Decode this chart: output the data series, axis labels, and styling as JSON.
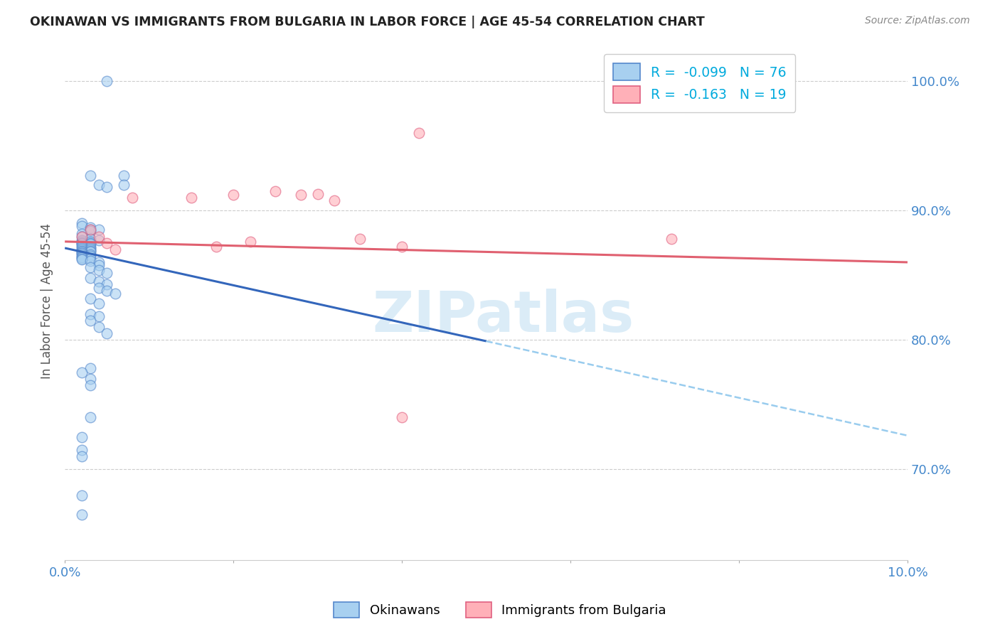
{
  "title": "OKINAWAN VS IMMIGRANTS FROM BULGARIA IN LABOR FORCE | AGE 45-54 CORRELATION CHART",
  "source": "Source: ZipAtlas.com",
  "ylabel": "In Labor Force | Age 45-54",
  "xmin": 0.0,
  "xmax": 0.1,
  "ymin": 0.63,
  "ymax": 1.03,
  "yticks": [
    0.7,
    0.8,
    0.9,
    1.0
  ],
  "ytick_labels": [
    "70.0%",
    "80.0%",
    "90.0%",
    "100.0%"
  ],
  "xticks": [
    0.0,
    0.02,
    0.04,
    0.06,
    0.08,
    0.1
  ],
  "xtick_labels": [
    "0.0%",
    "",
    "",
    "",
    "",
    "10.0%"
  ],
  "blue_R": -0.099,
  "blue_N": 76,
  "pink_R": -0.163,
  "pink_N": 19,
  "blue_face_color": "#a8d0f0",
  "blue_edge_color": "#5588cc",
  "pink_face_color": "#ffb0b8",
  "pink_edge_color": "#e06080",
  "blue_line_color": "#3366bb",
  "pink_line_color": "#e06070",
  "dashed_line_color": "#99ccee",
  "watermark_text": "ZIPatlas",
  "watermark_color": "#cce5f5",
  "blue_scatter_x": [
    0.005,
    0.003,
    0.007,
    0.007,
    0.004,
    0.005,
    0.002,
    0.002,
    0.003,
    0.003,
    0.004,
    0.003,
    0.002,
    0.002,
    0.003,
    0.003,
    0.004,
    0.002,
    0.002,
    0.003,
    0.003,
    0.002,
    0.002,
    0.003,
    0.002,
    0.002,
    0.003,
    0.002,
    0.003,
    0.002,
    0.002,
    0.003,
    0.003,
    0.002,
    0.003,
    0.002,
    0.002,
    0.002,
    0.003,
    0.002,
    0.003,
    0.002,
    0.002,
    0.002,
    0.003,
    0.002,
    0.002,
    0.003,
    0.004,
    0.004,
    0.003,
    0.004,
    0.005,
    0.003,
    0.004,
    0.005,
    0.004,
    0.005,
    0.006,
    0.003,
    0.004,
    0.003,
    0.004,
    0.003,
    0.004,
    0.005,
    0.003,
    0.002,
    0.003,
    0.003,
    0.003,
    0.002,
    0.002,
    0.002,
    0.002,
    0.002
  ],
  "blue_scatter_y": [
    1.0,
    0.927,
    0.927,
    0.92,
    0.92,
    0.918,
    0.89,
    0.888,
    0.887,
    0.885,
    0.885,
    0.884,
    0.882,
    0.88,
    0.878,
    0.878,
    0.877,
    0.877,
    0.876,
    0.876,
    0.875,
    0.875,
    0.875,
    0.874,
    0.874,
    0.873,
    0.872,
    0.872,
    0.871,
    0.871,
    0.87,
    0.87,
    0.869,
    0.869,
    0.868,
    0.868,
    0.867,
    0.867,
    0.866,
    0.866,
    0.865,
    0.865,
    0.864,
    0.864,
    0.863,
    0.863,
    0.862,
    0.861,
    0.86,
    0.858,
    0.856,
    0.854,
    0.852,
    0.848,
    0.845,
    0.843,
    0.84,
    0.838,
    0.836,
    0.832,
    0.828,
    0.82,
    0.818,
    0.815,
    0.81,
    0.805,
    0.778,
    0.775,
    0.77,
    0.765,
    0.74,
    0.725,
    0.715,
    0.71,
    0.68,
    0.665
  ],
  "pink_scatter_x": [
    0.002,
    0.003,
    0.004,
    0.005,
    0.006,
    0.008,
    0.015,
    0.02,
    0.025,
    0.03,
    0.035,
    0.04,
    0.042,
    0.028,
    0.032,
    0.022,
    0.018,
    0.072,
    0.04
  ],
  "pink_scatter_y": [
    0.88,
    0.885,
    0.88,
    0.875,
    0.87,
    0.91,
    0.91,
    0.912,
    0.915,
    0.913,
    0.878,
    0.872,
    0.96,
    0.912,
    0.908,
    0.876,
    0.872,
    0.878,
    0.74
  ],
  "blue_trend_x": [
    0.0,
    0.05
  ],
  "blue_trend_y": [
    0.871,
    0.799
  ],
  "pink_trend_x": [
    0.0,
    0.1
  ],
  "pink_trend_y": [
    0.876,
    0.86
  ],
  "dashed_trend_x": [
    0.05,
    0.1
  ],
  "dashed_trend_y": [
    0.799,
    0.726
  ],
  "legend_blue_label": "R =  -0.099   N = 76",
  "legend_pink_label": "R =  -0.163   N = 19",
  "bottom_legend_blue": "Okinawans",
  "bottom_legend_pink": "Immigrants from Bulgaria"
}
